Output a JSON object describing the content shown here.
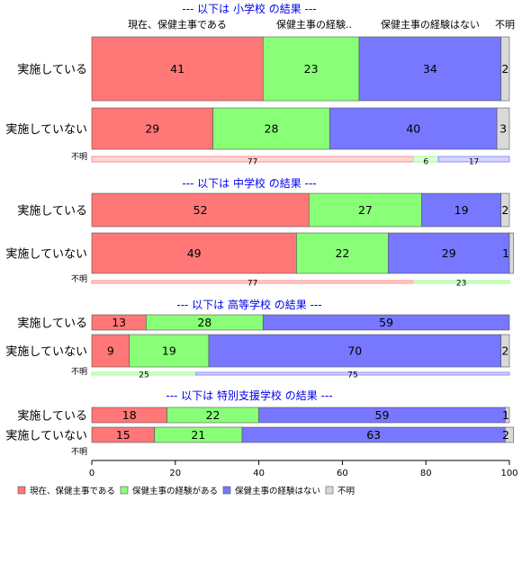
{
  "chart_data": {
    "type": "bar",
    "orientation": "horizontal",
    "stacked": true,
    "xlim": [
      0,
      100
    ],
    "xticks": [
      0,
      20,
      40,
      60,
      80,
      100
    ],
    "series": [
      {
        "name": "現在、保健主事である",
        "color": "#ff7777",
        "small_color": "#ffd6d6"
      },
      {
        "name": "保健主事の経験がある",
        "color": "#88ff77",
        "small_color": "#d9ffd3"
      },
      {
        "name": "保健主事の経験はない",
        "color": "#7777ff",
        "small_color": "#d6d6ff"
      },
      {
        "name": "不明",
        "color": "#d9d9d9",
        "small_color": "#f0f0f0"
      }
    ],
    "column_headers": [
      "現在、保健主事である",
      "保健主事の経験..",
      "保健主事の経験はない",
      "不明"
    ],
    "sections": [
      {
        "title": "--- 以下は 小学校 の結果 ---",
        "rows": [
          {
            "label": "実施している",
            "values": [
              41,
              23,
              34,
              2
            ],
            "text": [
              "41",
              "23",
              "34",
              "2"
            ]
          },
          {
            "label": "実施していない",
            "values": [
              29,
              28,
              40,
              3
            ],
            "text": [
              "29",
              "28",
              "40",
              "3"
            ]
          }
        ],
        "unknown": {
          "label": "不明",
          "values": [
            77,
            6,
            17,
            0
          ],
          "text": [
            "77",
            "6",
            "17",
            ""
          ]
        }
      },
      {
        "title": "--- 以下は 中学校 の結果 ---",
        "rows": [
          {
            "label": "実施している",
            "values": [
              52,
              27,
              19,
              2
            ],
            "text": [
              "52",
              "27",
              "19",
              "2"
            ]
          },
          {
            "label": "実施していない",
            "values": [
              49,
              22,
              29,
              1
            ],
            "text": [
              "49",
              "22",
              "29",
              "1"
            ]
          }
        ],
        "unknown": {
          "label": "不明",
          "values": [
            77,
            23,
            0,
            0
          ],
          "text": [
            "77",
            "23",
            "",
            ""
          ]
        }
      },
      {
        "title": "--- 以下は 高等学校 の結果 ---",
        "rows": [
          {
            "label": "実施している",
            "values": [
              13,
              28,
              59,
              0
            ],
            "text": [
              "13",
              "28",
              "59",
              ""
            ]
          },
          {
            "label": "実施していない",
            "values": [
              9,
              19,
              70,
              2
            ],
            "text": [
              "9",
              "19",
              "70",
              "2"
            ]
          }
        ],
        "unknown": {
          "label": "不明",
          "values": [
            0,
            25,
            75,
            0
          ],
          "text": [
            "",
            "25",
            "75",
            ""
          ]
        }
      },
      {
        "title": "--- 以下は 特別支援学校 の結果 ---",
        "rows": [
          {
            "label": "実施している",
            "values": [
              18,
              22,
              59,
              1
            ],
            "text": [
              "18",
              "22",
              "59",
              "1"
            ]
          },
          {
            "label": "実施していない",
            "values": [
              15,
              21,
              63,
              2
            ],
            "text": [
              "15",
              "21",
              "63",
              "2"
            ]
          }
        ],
        "unknown": {
          "label": "不明",
          "values": [
            0,
            0,
            0,
            0
          ],
          "text": [
            "",
            "",
            "",
            ""
          ]
        }
      }
    ],
    "legend": {
      "position": "bottom-left",
      "entries": [
        "現在、保健主事である",
        "保健主事の経験がある",
        "保健主事の経験はない",
        "不明"
      ]
    }
  }
}
